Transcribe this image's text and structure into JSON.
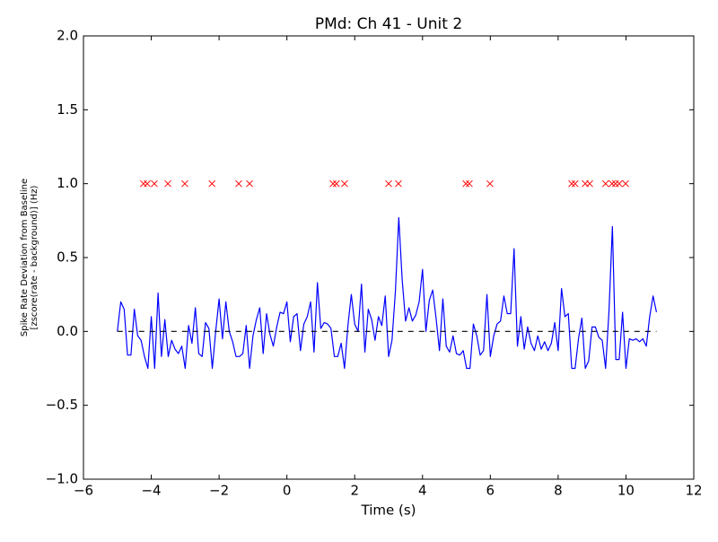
{
  "chart_data": {
    "type": "line",
    "title": "PMd: Ch 41 - Unit 2",
    "xlabel": "Time (s)",
    "ylabel": [
      "Spike Rate Deviation from Baseline",
      "[zscore(rate - background)] (Hz)"
    ],
    "xlim": [
      -6,
      12
    ],
    "ylim": [
      -1.0,
      2.0
    ],
    "xticks": [
      {
        "value": -6,
        "label": "−6"
      },
      {
        "value": -4,
        "label": "−4"
      },
      {
        "value": -2,
        "label": "−2"
      },
      0,
      2,
      4,
      6,
      8,
      10,
      12
    ],
    "yticks": [
      {
        "value": -1.0,
        "label": "−1.0"
      },
      {
        "value": -0.5,
        "label": "−0.5"
      },
      {
        "value": 0.0,
        "label": "0.0"
      },
      {
        "value": 0.5,
        "label": "0.5"
      },
      {
        "value": 1.0,
        "label": "1.0"
      },
      {
        "value": 1.5,
        "label": "1.5"
      },
      {
        "value": 2.0,
        "label": "2.0"
      }
    ],
    "series": [
      {
        "style": "line",
        "color": "#0000ff",
        "x": [
          -5.0,
          -4.9,
          -4.8,
          -4.7,
          -4.6,
          -4.5,
          -4.4,
          -4.3,
          -4.2,
          -4.1,
          -4.0,
          -3.9,
          -3.8,
          -3.7,
          -3.6,
          -3.5,
          -3.4,
          -3.3,
          -3.2,
          -3.1,
          -3.0,
          -2.9,
          -2.8,
          -2.7,
          -2.6,
          -2.5,
          -2.4,
          -2.3,
          -2.2,
          -2.1,
          -2.0,
          -1.9,
          -1.8,
          -1.7,
          -1.6,
          -1.5,
          -1.4,
          -1.3,
          -1.2,
          -1.1,
          -1.0,
          -0.9,
          -0.8,
          -0.7,
          -0.6,
          -0.5,
          -0.4,
          -0.3,
          -0.2,
          -0.1,
          0.0,
          0.1,
          0.2,
          0.3,
          0.4,
          0.5,
          0.6,
          0.7,
          0.8,
          0.9,
          1.0,
          1.1,
          1.2,
          1.3,
          1.4,
          1.5,
          1.6,
          1.7,
          1.8,
          1.9,
          2.0,
          2.1,
          2.2,
          2.3,
          2.4,
          2.5,
          2.6,
          2.7,
          2.8,
          2.9,
          3.0,
          3.1,
          3.2,
          3.3,
          3.4,
          3.5,
          3.6,
          3.7,
          3.8,
          3.9,
          4.0,
          4.1,
          4.2,
          4.3,
          4.4,
          4.5,
          4.6,
          4.7,
          4.8,
          4.9,
          5.0,
          5.1,
          5.2,
          5.3,
          5.4,
          5.5,
          5.6,
          5.7,
          5.8,
          5.9,
          6.0,
          6.1,
          6.2,
          6.3,
          6.4,
          6.5,
          6.6,
          6.7,
          6.8,
          6.9,
          7.0,
          7.1,
          7.2,
          7.3,
          7.4,
          7.5,
          7.6,
          7.7,
          7.8,
          7.9,
          8.0,
          8.1,
          8.2,
          8.3,
          8.4,
          8.5,
          8.6,
          8.7,
          8.8,
          8.9,
          9.0,
          9.1,
          9.2,
          9.3,
          9.4,
          9.5,
          9.6,
          9.7,
          9.8,
          9.9,
          10.0,
          10.1,
          10.2,
          10.3,
          10.4,
          10.5,
          10.6,
          10.7,
          10.8,
          10.9
        ],
        "values": [
          0.0,
          0.2,
          0.15,
          -0.16,
          -0.16,
          0.15,
          -0.03,
          -0.06,
          -0.17,
          -0.25,
          0.1,
          -0.25,
          0.26,
          -0.17,
          0.08,
          -0.17,
          -0.06,
          -0.12,
          -0.15,
          -0.1,
          -0.25,
          0.04,
          -0.08,
          0.16,
          -0.15,
          -0.17,
          0.06,
          0.02,
          -0.25,
          0.0,
          0.22,
          -0.05,
          0.2,
          0.0,
          -0.07,
          -0.17,
          -0.17,
          -0.15,
          0.04,
          -0.25,
          -0.03,
          0.08,
          0.16,
          -0.15,
          0.12,
          -0.02,
          -0.1,
          0.03,
          0.13,
          0.12,
          0.2,
          -0.07,
          0.1,
          0.12,
          -0.13,
          0.05,
          0.1,
          0.2,
          -0.14,
          0.33,
          0.02,
          0.06,
          0.05,
          0.02,
          -0.17,
          -0.17,
          -0.08,
          -0.25,
          0.04,
          0.25,
          0.05,
          0.0,
          0.32,
          -0.14,
          0.15,
          0.08,
          -0.06,
          0.1,
          0.04,
          0.24,
          -0.17,
          -0.06,
          0.27,
          0.77,
          0.35,
          0.07,
          0.16,
          0.07,
          0.11,
          0.2,
          0.42,
          0.0,
          0.21,
          0.28,
          0.09,
          -0.13,
          0.22,
          -0.1,
          -0.14,
          -0.03,
          -0.15,
          -0.16,
          -0.13,
          -0.25,
          -0.25,
          0.05,
          -0.03,
          -0.16,
          -0.13,
          0.25,
          -0.17,
          -0.03,
          0.05,
          0.07,
          0.24,
          0.12,
          0.12,
          0.56,
          -0.1,
          0.1,
          -0.12,
          0.03,
          -0.08,
          -0.13,
          -0.03,
          -0.12,
          -0.07,
          -0.13,
          -0.08,
          0.06,
          -0.13,
          0.29,
          0.1,
          0.12,
          -0.25,
          -0.25,
          -0.05,
          0.09,
          -0.25,
          -0.2,
          0.03,
          0.03,
          -0.04,
          -0.06,
          -0.25,
          0.14,
          0.71,
          -0.19,
          -0.19,
          0.13,
          -0.25,
          -0.05,
          -0.06,
          -0.05,
          -0.07,
          -0.05,
          -0.1,
          0.1,
          0.24,
          0.13
        ]
      },
      {
        "style": "dashed",
        "color": "#000000",
        "x": [
          -5.0,
          10.9
        ],
        "values": [
          0.0,
          0.0
        ]
      },
      {
        "style": "markers",
        "color": "#ff0000",
        "x": [
          -4.23,
          -4.12,
          -3.91,
          -3.51,
          -3.01,
          -2.21,
          -1.42,
          -1.1,
          1.36,
          1.46,
          1.7,
          3.0,
          3.29,
          5.28,
          5.38,
          5.99,
          8.4,
          8.5,
          8.8,
          8.93,
          9.4,
          9.59,
          9.69,
          9.8,
          9.99
        ],
        "values": [
          1.0,
          1.0,
          1.0,
          1.0,
          1.0,
          1.0,
          1.0,
          1.0,
          1.0,
          1.0,
          1.0,
          1.0,
          1.0,
          1.0,
          1.0,
          1.0,
          1.0,
          1.0,
          1.0,
          1.0,
          1.0,
          1.0,
          1.0,
          1.0,
          1.0
        ]
      }
    ]
  }
}
